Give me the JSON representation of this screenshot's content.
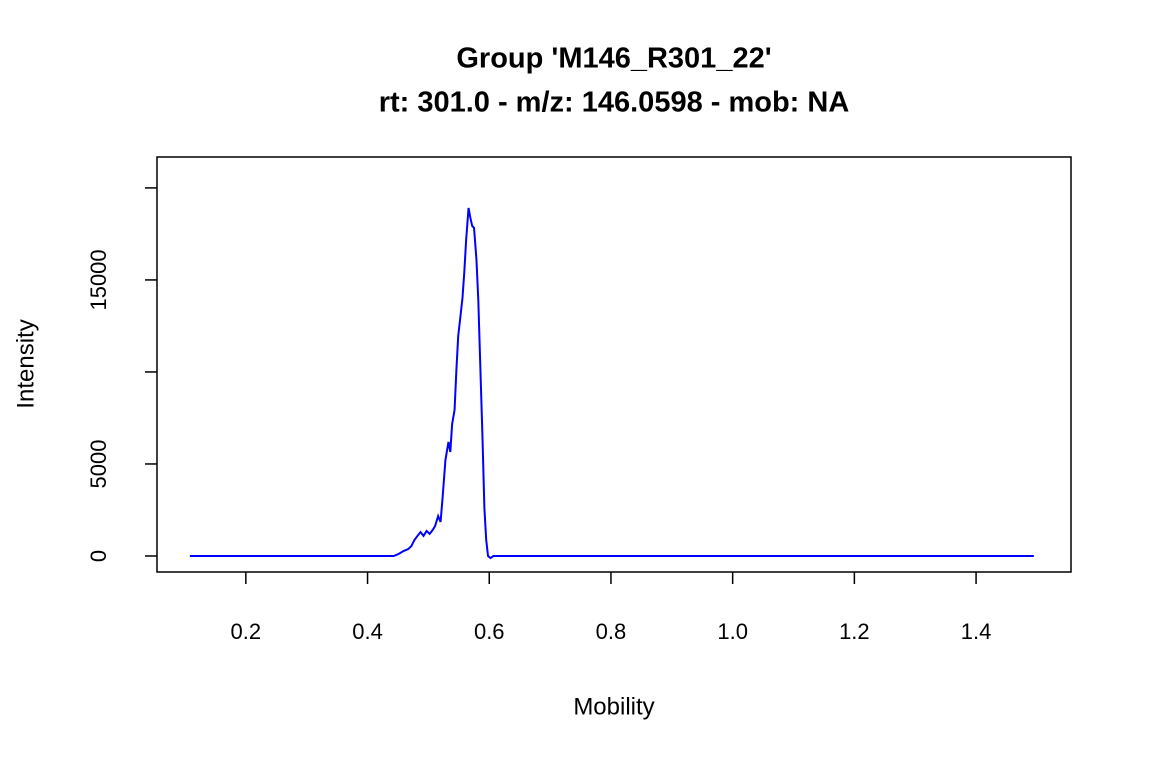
{
  "chart_data": {
    "type": "line",
    "title": "Group 'M146_R301_22'",
    "subtitle": "rt: 301.0 - m/z: 146.0598 - mob: NA",
    "x_label": "Mobility",
    "y_label": "Intensity",
    "xlim": [
      0.054,
      1.556
    ],
    "ylim": [
      -870,
      21680
    ],
    "xticks": [
      0.2,
      0.4,
      0.6,
      0.8,
      {
        "value": 1,
        "label": "1.0"
      },
      1.2,
      1.4
    ],
    "yticks": [
      0,
      5000,
      {
        "value": 10000,
        "label": null
      },
      15000,
      {
        "value": 20000,
        "label": null
      }
    ],
    "series": [
      {
        "color": "#0000ff",
        "x": [
          0.108,
          0.443,
          0.451,
          0.459,
          0.467,
          0.472,
          0.477,
          0.482,
          0.487,
          0.492,
          0.497,
          0.502,
          0.507,
          0.511,
          0.516,
          0.52,
          0.523,
          0.528,
          0.533,
          0.536,
          0.539,
          0.543,
          0.546,
          0.549,
          0.552,
          0.556,
          0.559,
          0.562,
          0.566,
          0.569,
          0.572,
          0.575,
          0.579,
          0.582,
          0.585,
          0.589,
          0.592,
          0.595,
          0.598,
          0.602,
          0.607,
          1.495
        ],
        "values": [
          0,
          0,
          110,
          270,
          380,
          540,
          870,
          1090,
          1300,
          1090,
          1360,
          1200,
          1410,
          1630,
          2170,
          1850,
          3040,
          5220,
          6200,
          5650,
          7170,
          7930,
          10110,
          11960,
          12830,
          14020,
          15430,
          17170,
          18910,
          18370,
          17930,
          17830,
          16090,
          13910,
          10650,
          6300,
          2610,
          870,
          0,
          -110,
          0,
          0
        ]
      }
    ]
  }
}
